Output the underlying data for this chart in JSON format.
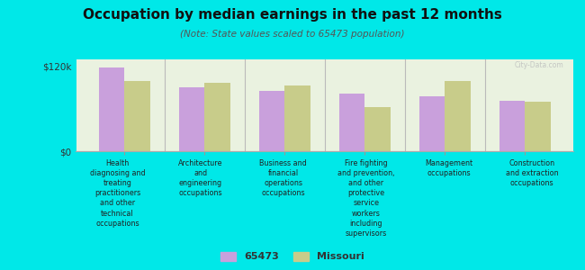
{
  "title": "Occupation by median earnings in the past 12 months",
  "subtitle": "(Note: State values scaled to 65473 population)",
  "background_color": "#00e8e8",
  "plot_bg_color": "#eaf2e0",
  "categories": [
    "Health\ndiagnosing and\ntreating\npractitioners\nand other\ntechnical\noccupations",
    "Architecture\nand\nengineering\noccupations",
    "Business and\nfinancial\noperations\noccupations",
    "Fire fighting\nand prevention,\nand other\nprotective\nservice\nworkers\nincluding\nsupervisors",
    "Management\noccupations",
    "Construction\nand extraction\noccupations"
  ],
  "values_65473": [
    118000,
    90000,
    86000,
    82000,
    78000,
    72000
  ],
  "values_missouri": [
    100000,
    97000,
    93000,
    62000,
    100000,
    70000
  ],
  "color_65473": "#c9a0dc",
  "color_missouri": "#c8cc8a",
  "ylim": [
    0,
    130000
  ],
  "yticks": [
    0,
    120000
  ],
  "ytick_labels": [
    "$0",
    "$120k"
  ],
  "legend_label_1": "65473",
  "legend_label_2": "Missouri",
  "bar_width": 0.32,
  "watermark": "City-Data.com"
}
